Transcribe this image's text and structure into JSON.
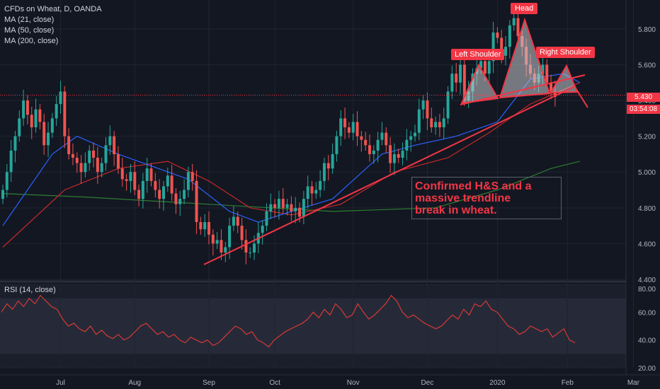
{
  "chart_header": {
    "symbol_line": "CFDs on Wheat, D, OANDA",
    "indicators": [
      "MA (21, close)",
      "MA (50, close)",
      "MA (200, close)"
    ]
  },
  "rsi_header": "RSI (14, close)",
  "annotations": {
    "head": "Head",
    "left_shoulder": "Left Shoulder",
    "right_shoulder": "Right Shoulder",
    "note_lines": [
      "Confirmed H&S and a",
      "massive trendline",
      "break in wheat."
    ]
  },
  "price_badge": {
    "price": "5.430",
    "countdown": "03:54:08"
  },
  "colors": {
    "background": "#131722",
    "grid": "#1f2430",
    "up": "#26a69a",
    "down": "#ef5350",
    "ma21": "#2962ff",
    "ma50": "#c62828",
    "ma200": "#2e7d32",
    "annotation": "#f23645",
    "rsi_line": "#e53935",
    "rsi_bg": "#2a2e39"
  },
  "chart_data": [
    {
      "type": "candlestick",
      "title": "CFDs on Wheat, D, OANDA",
      "x_ticks": [
        "Jul",
        "Aug",
        "Sep",
        "Oct",
        "Nov",
        "Dec",
        "2020",
        "Feb",
        "Mar"
      ],
      "y_ticks": [
        "5.800",
        "5.600",
        "5.400",
        "5.200",
        "5.000",
        "4.800",
        "4.600",
        "4.400"
      ],
      "ylim": [
        4.4,
        5.93
      ],
      "series": [
        {
          "name": "price",
          "closes": [
            4.9,
            5.0,
            5.12,
            5.2,
            5.3,
            5.4,
            5.32,
            5.25,
            5.35,
            5.28,
            5.15,
            5.22,
            5.3,
            5.38,
            5.45,
            5.2,
            5.1,
            5.08,
            5.05,
            5.0,
            5.05,
            5.12,
            5.08,
            5.0,
            5.05,
            5.15,
            5.2,
            5.1,
            5.02,
            4.96,
            4.95,
            5.0,
            4.9,
            4.85,
            4.95,
            5.02,
            4.95,
            4.9,
            4.85,
            4.92,
            4.98,
            4.88,
            4.82,
            4.85,
            4.9,
            5.0,
            4.95,
            4.72,
            4.68,
            4.72,
            4.65,
            4.6,
            4.62,
            4.55,
            4.58,
            4.7,
            4.75,
            4.7,
            4.62,
            4.55,
            4.55,
            4.6,
            4.66,
            4.7,
            4.78,
            4.82,
            4.8,
            4.85,
            4.8,
            4.82,
            4.78,
            4.8,
            4.75,
            4.85,
            4.92,
            4.88,
            4.9,
            4.95,
            5.05,
            5.02,
            5.1,
            5.2,
            5.3,
            5.25,
            5.22,
            5.28,
            5.2,
            5.18,
            5.15,
            5.1,
            5.12,
            5.18,
            5.22,
            5.15,
            5.05,
            5.1,
            5.08,
            5.12,
            5.18,
            5.2,
            5.22,
            5.35,
            5.4,
            5.3,
            5.25,
            5.28,
            5.25,
            5.3,
            5.45,
            5.55,
            5.5,
            5.6,
            5.4,
            5.45,
            5.55,
            5.58,
            5.62,
            5.55,
            5.62,
            5.78,
            5.75,
            5.65,
            5.7,
            5.82,
            5.86,
            5.76,
            5.7,
            5.6,
            5.55,
            5.5,
            5.55,
            5.6,
            5.5,
            5.45,
            5.42
          ],
          "ohlc_note": "daily candles, values read approximately from the price axis"
        },
        {
          "name": "MA (21, close)",
          "points": [
            [
              0,
              4.7
            ],
            [
              12,
              5.1
            ],
            [
              18,
              5.2
            ],
            [
              28,
              5.1
            ],
            [
              45,
              4.96
            ],
            [
              55,
              4.78
            ],
            [
              62,
              4.72
            ],
            [
              70,
              4.78
            ],
            [
              80,
              4.85
            ],
            [
              92,
              5.1
            ],
            [
              100,
              5.15
            ],
            [
              110,
              5.2
            ],
            [
              120,
              5.28
            ],
            [
              128,
              5.52
            ],
            [
              136,
              5.55
            ],
            [
              140,
              5.5
            ]
          ]
        },
        {
          "name": "MA (50, close)",
          "points": [
            [
              0,
              4.58
            ],
            [
              15,
              4.9
            ],
            [
              28,
              5.02
            ],
            [
              40,
              5.06
            ],
            [
              50,
              4.95
            ],
            [
              60,
              4.8
            ],
            [
              70,
              4.76
            ],
            [
              82,
              4.82
            ],
            [
              95,
              5.0
            ],
            [
              108,
              5.08
            ],
            [
              118,
              5.22
            ],
            [
              128,
              5.38
            ],
            [
              138,
              5.48
            ],
            [
              140,
              5.5
            ]
          ]
        },
        {
          "name": "MA (200, close)",
          "points": [
            [
              0,
              4.88
            ],
            [
              20,
              4.86
            ],
            [
              50,
              4.82
            ],
            [
              80,
              4.78
            ],
            [
              105,
              4.8
            ],
            [
              120,
              4.9
            ],
            [
              133,
              5.02
            ],
            [
              140,
              5.06
            ]
          ]
        }
      ],
      "trendline": [
        [
          4.46,
          "Sep"
        ],
        [
          5.47,
          "Feb"
        ]
      ],
      "neckline": {
        "from": 5.38,
        "to": 5.47
      }
    },
    {
      "type": "line",
      "title": "RSI (14, close)",
      "y_ticks": [
        "80.00",
        "60.00",
        "40.00",
        "20.00"
      ],
      "ylim": [
        20,
        80
      ],
      "series": [
        {
          "name": "RSI (14, close)",
          "values": [
            60,
            66,
            62,
            68,
            64,
            70,
            66,
            72,
            68,
            64,
            62,
            55,
            50,
            52,
            48,
            46,
            50,
            44,
            47,
            43,
            41,
            44,
            40,
            42,
            46,
            50,
            52,
            48,
            44,
            46,
            42,
            44,
            40,
            38,
            42,
            40,
            38,
            40,
            36,
            38,
            42,
            46,
            50,
            48,
            44,
            46,
            40,
            38,
            35,
            40,
            43,
            46,
            48,
            50,
            52,
            55,
            60,
            56,
            62,
            58,
            66,
            62,
            56,
            58,
            66,
            60,
            55,
            58,
            62,
            66,
            72,
            68,
            60,
            56,
            58,
            55,
            52,
            50,
            48,
            50,
            54,
            58,
            55,
            62,
            58,
            66,
            64,
            68,
            62,
            60,
            55,
            50,
            48,
            44,
            46,
            50,
            48,
            46,
            48,
            42,
            45,
            48,
            40,
            38
          ]
        }
      ]
    }
  ]
}
